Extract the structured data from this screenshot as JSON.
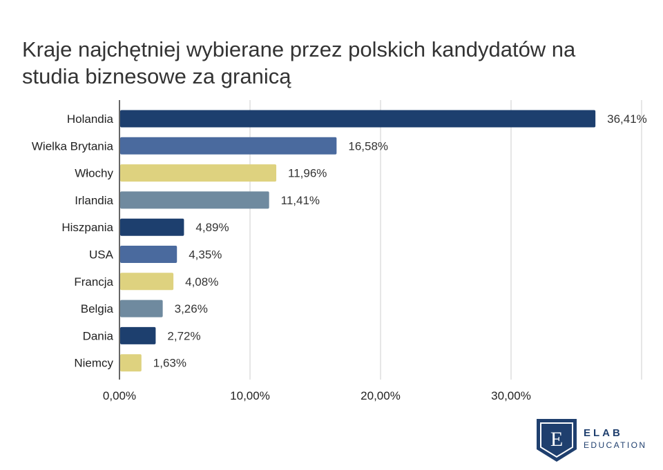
{
  "chart_data": {
    "type": "bar",
    "orientation": "horizontal",
    "title": "Kraje najchętniej wybierane przez polskich kandydatów na studia biznesowe za granicą",
    "categories": [
      "Holandia",
      "Wielka Brytania",
      "Włochy",
      "Irlandia",
      "Hiszpania",
      "USA",
      "Francja",
      "Belgia",
      "Dania",
      "Niemcy"
    ],
    "values": [
      36.41,
      16.58,
      11.96,
      11.41,
      4.89,
      4.35,
      4.08,
      3.26,
      2.72,
      1.63
    ],
    "value_labels": [
      "36,41%",
      "16,58%",
      "11,96%",
      "11,41%",
      "4,89%",
      "4,35%",
      "4,08%",
      "3,26%",
      "2,72%",
      "1,63%"
    ],
    "bar_colors": [
      "#1d3f6e",
      "#4a6a9e",
      "#ded27f",
      "#6f8a9f",
      "#1d3f6e",
      "#4a6a9e",
      "#ded27f",
      "#6f8a9f",
      "#1d3f6e",
      "#ded27f"
    ],
    "x_ticks": [
      0,
      10,
      20,
      30
    ],
    "x_tick_labels": [
      "0,00%",
      "10,00%",
      "20,00%",
      "30,00%"
    ],
    "xlim": [
      0,
      40
    ],
    "grid": true,
    "xlabel": "",
    "ylabel": ""
  },
  "logo": {
    "letter": "E",
    "brand": "ELAB",
    "sub": "EDUCATION",
    "color": "#1f3f6e"
  }
}
